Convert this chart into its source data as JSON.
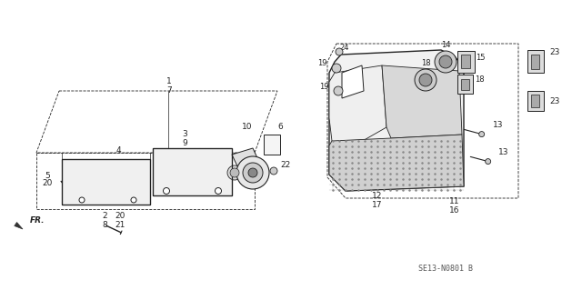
{
  "bg_color": "#ffffff",
  "line_color": "#222222",
  "part_code": "SE13-N0801 B",
  "fig_width": 6.4,
  "fig_height": 3.19,
  "dpi": 100
}
